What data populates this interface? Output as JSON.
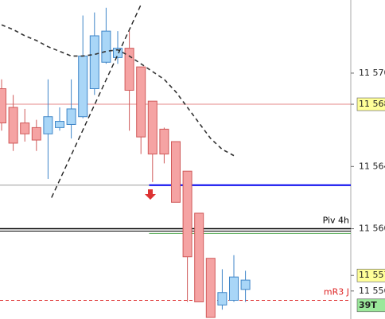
{
  "chart_data": {
    "type": "candlestick",
    "up_color": "#a9d6f7",
    "up_stroke": "#3f86c8",
    "down_color": "#f5a3a3",
    "down_stroke": "#d05a5a",
    "open": [
      11569.0,
      11567.8,
      11566.8,
      11566.5,
      11566.1,
      11566.5,
      11566.7,
      11567.2,
      11569.0,
      11570.7,
      11571.0,
      11571.6,
      11570.4,
      11568.2,
      11566.4,
      11565.6,
      11563.7,
      11561.0,
      11558.1,
      11555.1,
      11555.4,
      11556.1
    ],
    "high": [
      11569.6,
      11568.6,
      11567.7,
      11567.0,
      11569.6,
      11567.8,
      11569.6,
      11573.7,
      11573.9,
      11574.2,
      11572.7,
      11572.7,
      11570.4,
      11568.2,
      11566.5,
      11565.6,
      11563.7,
      11561.0,
      11558.1,
      11557.4,
      11558.3,
      11557.3
    ],
    "low": [
      11566.3,
      11565.0,
      11565.6,
      11565.0,
      11563.2,
      11566.3,
      11565.8,
      11567.1,
      11568.6,
      11570.6,
      11570.6,
      11566.3,
      11564.8,
      11563.0,
      11564.2,
      11561.7,
      11555.3,
      11555.3,
      11554.3,
      11554.8,
      11555.3,
      11555.3
    ],
    "close": [
      11566.8,
      11565.5,
      11566.1,
      11565.7,
      11567.2,
      11566.9,
      11567.7,
      11571.1,
      11572.4,
      11572.7,
      11571.6,
      11568.9,
      11565.9,
      11564.8,
      11564.8,
      11561.7,
      11558.2,
      11555.3,
      11554.3,
      11555.9,
      11556.9,
      11556.7
    ],
    "moving_average": {
      "color": "#333333",
      "values": [
        11573.1,
        11572.8,
        11572.4,
        11572.1,
        11571.7,
        11571.4,
        11571.1,
        11571.1,
        11571.2,
        11571.4,
        11571.5,
        11571.1,
        11570.6,
        11570.1,
        11569.6,
        11568.8,
        11567.8,
        11566.8,
        11565.8,
        11565.1,
        11564.7
      ]
    },
    "trendline": {
      "color": "#222222",
      "x": [
        4.3,
        12.0
      ],
      "values": [
        11562.0,
        11574.4
      ]
    },
    "levels": [
      {
        "value": 11568,
        "color": "#e58a8a",
        "width": 1
      },
      {
        "value": 11562.8,
        "color": "#9a9a9a",
        "width": 1
      },
      {
        "value": 11562.8,
        "color": "#0000ee",
        "width": 2,
        "from": 12.7
      },
      {
        "value": 11560.0,
        "color": "#000000",
        "width": 1.5,
        "double": true,
        "label": "Piv 4h"
      },
      {
        "value": 11559.7,
        "color": "#55aa55",
        "width": 1,
        "from": 12.7
      },
      {
        "value": 11555.4,
        "color": "#dd2222",
        "width": 1,
        "dash": true,
        "label": "mR3 J"
      }
    ],
    "ylim": [
      11554.2,
      11574.7
    ],
    "yticks": [
      {
        "value": 11570,
        "label": "11 570"
      },
      {
        "value": 11564,
        "label": "11 564"
      },
      {
        "value": 11560,
        "label": "11 560"
      }
    ],
    "price_labels": [
      {
        "value": 11568,
        "label": "11 568",
        "bg": "#ffff99"
      },
      {
        "value": 11557,
        "label": "11 557",
        "bg": "#ffff99"
      },
      {
        "value": 11556,
        "label": "11 556"
      },
      {
        "label": "39T",
        "bg": "#9be89b"
      }
    ]
  }
}
